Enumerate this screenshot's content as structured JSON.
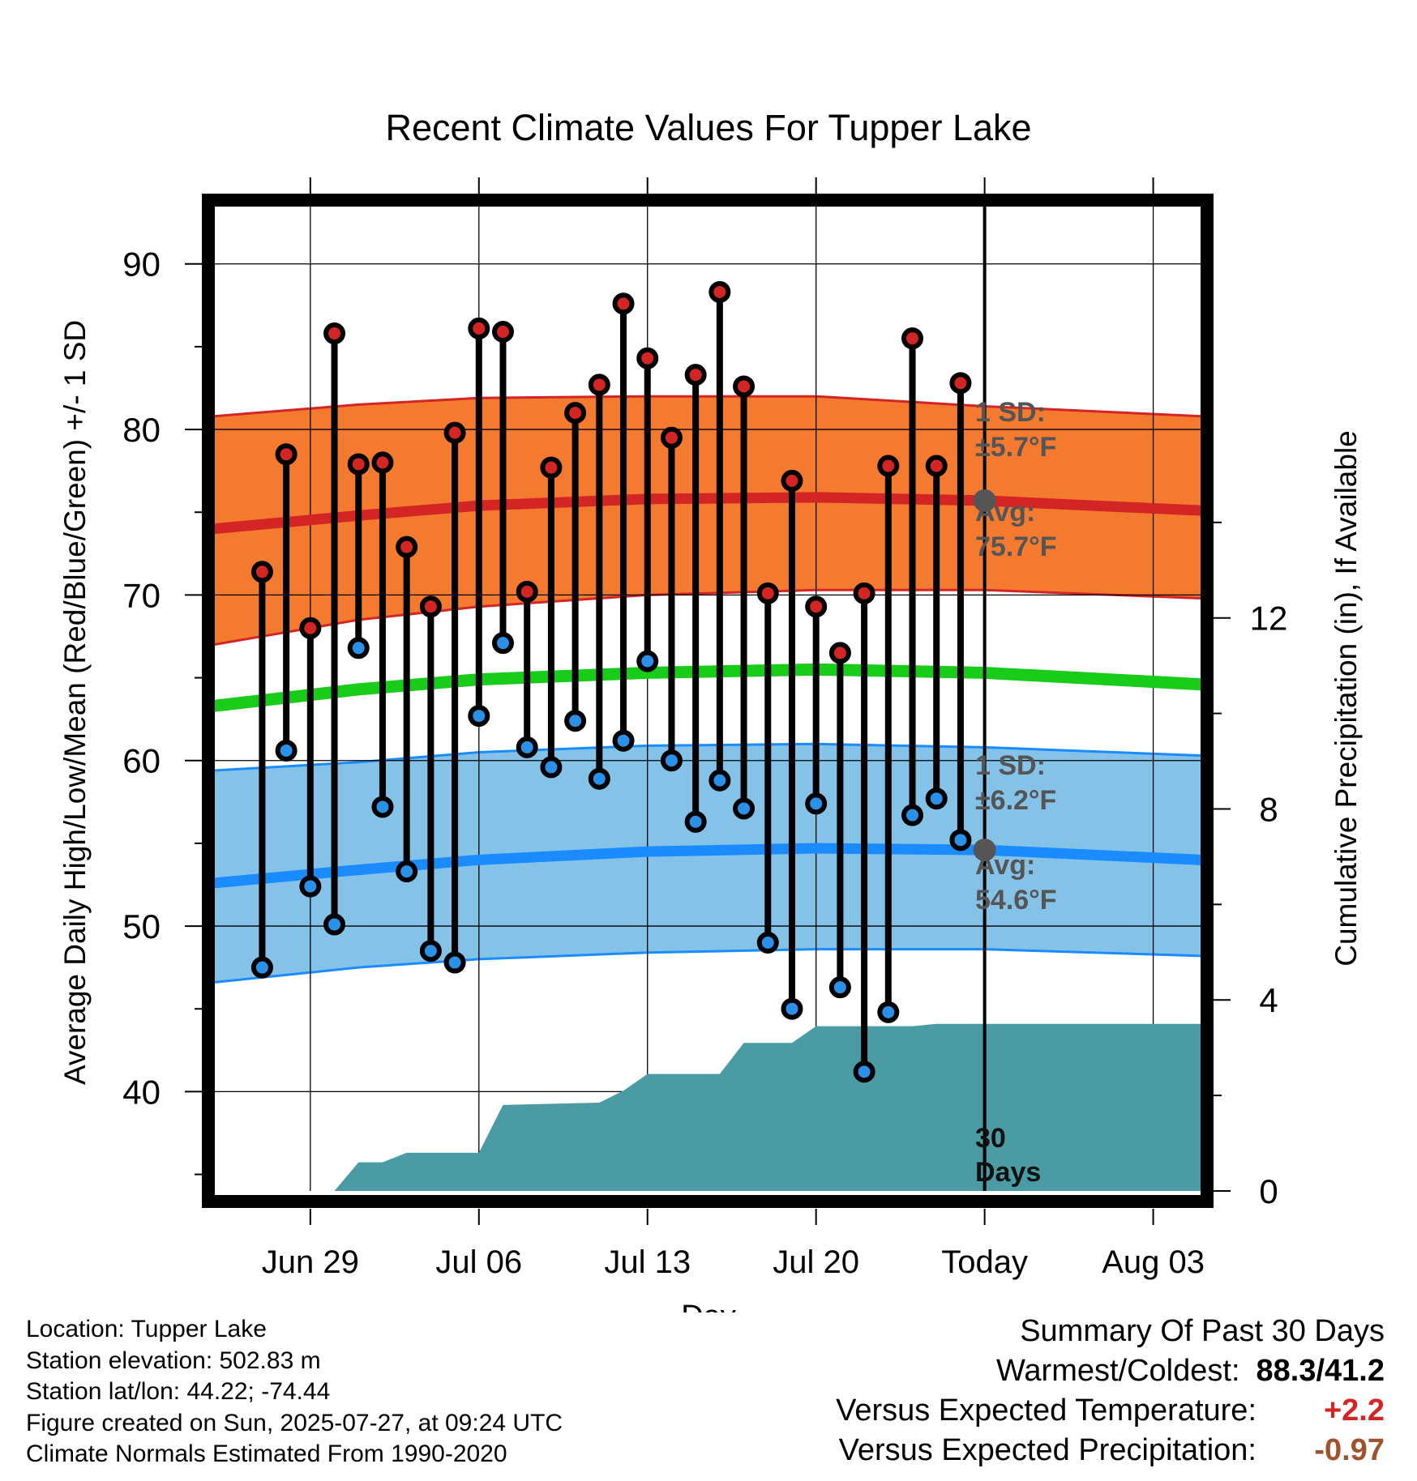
{
  "chart_data": {
    "type": "line",
    "title": "Recent Climate Values For Tupper Lake",
    "xlabel": "Day",
    "ylabel": "Average Daily High/Low/Mean (Red/Blue/Green) +/- 1 SD",
    "y2label": "Cumulative Precipitation (in), If Available",
    "ylim": [
      34,
      94
    ],
    "y2lim": [
      0,
      20.8
    ],
    "yticks": [
      40,
      50,
      60,
      70,
      80,
      90
    ],
    "y2ticks": [
      0,
      4,
      8,
      12
    ],
    "x_tick_labels": [
      "Jun 29",
      "Jul 06",
      "Jul 13",
      "Jul 20",
      "Today",
      "Aug 03"
    ],
    "x_tick_dates": [
      "2025-06-29",
      "2025-07-06",
      "2025-07-13",
      "2025-07-20",
      "2025-07-27",
      "2025-08-03"
    ],
    "xlim": [
      "2025-06-25",
      "2025-08-05"
    ],
    "grid": true,
    "daily_observations": {
      "dates": [
        "2025-06-27",
        "2025-06-28",
        "2025-06-29",
        "2025-06-30",
        "2025-07-01",
        "2025-07-02",
        "2025-07-03",
        "2025-07-04",
        "2025-07-05",
        "2025-07-06",
        "2025-07-07",
        "2025-07-08",
        "2025-07-09",
        "2025-07-10",
        "2025-07-11",
        "2025-07-12",
        "2025-07-13",
        "2025-07-14",
        "2025-07-15",
        "2025-07-16",
        "2025-07-17",
        "2025-07-18",
        "2025-07-19",
        "2025-07-20",
        "2025-07-21",
        "2025-07-22",
        "2025-07-23",
        "2025-07-24",
        "2025-07-25",
        "2025-07-26"
      ],
      "high": [
        71.4,
        78.5,
        68.0,
        85.8,
        77.9,
        78.0,
        72.9,
        69.3,
        79.8,
        86.1,
        85.9,
        70.2,
        77.7,
        81.0,
        82.7,
        87.6,
        84.3,
        79.5,
        83.3,
        88.3,
        82.6,
        70.1,
        76.9,
        69.3,
        66.5,
        70.1,
        77.8,
        85.5,
        77.8,
        82.8
      ],
      "low": [
        47.5,
        60.6,
        52.4,
        50.1,
        66.8,
        57.2,
        53.3,
        48.5,
        47.8,
        62.7,
        67.1,
        60.8,
        59.6,
        62.4,
        58.9,
        61.2,
        66.0,
        60.0,
        56.3,
        58.8,
        57.1,
        49.0,
        45.0,
        57.4,
        46.3,
        41.2,
        44.8,
        56.7,
        57.7,
        55.2
      ]
    },
    "normals": {
      "dates": [
        "2025-06-25",
        "2025-07-01",
        "2025-07-06",
        "2025-07-13",
        "2025-07-20",
        "2025-07-27",
        "2025-08-05"
      ],
      "avg_high": [
        74.0,
        74.8,
        75.4,
        75.8,
        75.9,
        75.7,
        75.1
      ],
      "avg_high_sd_upper": [
        80.8,
        81.5,
        81.9,
        82.0,
        82.0,
        81.4,
        80.8
      ],
      "avg_high_sd_lower": [
        67.0,
        68.5,
        69.3,
        70.0,
        70.3,
        70.3,
        69.8
      ],
      "avg_mean": [
        63.3,
        64.3,
        64.9,
        65.3,
        65.5,
        65.3,
        64.6
      ],
      "avg_low": [
        52.6,
        53.4,
        54.0,
        54.5,
        54.7,
        54.6,
        54.0
      ],
      "avg_low_sd_upper": [
        59.4,
        59.9,
        60.5,
        60.9,
        61.0,
        60.8,
        60.3
      ],
      "avg_low_sd_lower": [
        46.6,
        47.5,
        48.0,
        48.4,
        48.6,
        48.6,
        48.2
      ]
    },
    "cumulative_precipitation": {
      "dates": [
        "2025-06-30",
        "2025-07-01",
        "2025-07-02",
        "2025-07-03",
        "2025-07-04",
        "2025-07-06",
        "2025-07-07",
        "2025-07-11",
        "2025-07-12",
        "2025-07-13",
        "2025-07-16",
        "2025-07-17",
        "2025-07-19",
        "2025-07-20",
        "2025-07-24",
        "2025-07-25",
        "2025-08-05"
      ],
      "values": [
        0.0,
        0.6,
        0.6,
        0.8,
        0.8,
        0.8,
        1.8,
        1.85,
        2.1,
        2.45,
        2.45,
        3.1,
        3.1,
        3.45,
        3.45,
        3.5,
        3.5
      ]
    },
    "annotations": {
      "high_sd": {
        "label": "1 SD:",
        "value": "±5.7°F"
      },
      "high_avg": {
        "label": "Avg:",
        "value": "75.7°F",
        "date": "2025-07-27",
        "y": 75.7
      },
      "low_sd": {
        "label": "1 SD:",
        "value": "±6.2°F"
      },
      "low_avg": {
        "label": "Avg:",
        "value": "54.6°F",
        "date": "2025-07-27",
        "y": 54.6
      },
      "window": {
        "line1": "30",
        "line2": "Days",
        "date": "2025-07-27"
      }
    },
    "colors": {
      "high_band": "#f47a30",
      "high_line": "#d42525",
      "mean_line": "#19cc19",
      "low_band": "#85c2e8",
      "low_line": "#1a8cff",
      "precip": "#4a9ba4",
      "high_dot": "#d42525",
      "low_dot": "#2a90e8",
      "annotation_text": "#555555"
    }
  },
  "footer": {
    "location": "Location: Tupper Lake",
    "elevation": "Station elevation: 502.83 m",
    "latlon": "Station lat/lon: 44.22; -74.44",
    "created": "Figure created on Sun, 2025-07-27, at 09:24 UTC",
    "normals": "Climate Normals Estimated From 1990-2020"
  },
  "summary": {
    "heading": "Summary Of Past 30 Days",
    "warm_cold_label": "Warmest/Coldest:",
    "warm_cold_value": "88.3/41.2",
    "temp_label": "Versus Expected Temperature:",
    "temp_value": "+2.2",
    "temp_color": "#d42525",
    "precip_label": "Versus Expected Precipitation:",
    "precip_value": "-0.97",
    "precip_color": "#a0522d"
  }
}
